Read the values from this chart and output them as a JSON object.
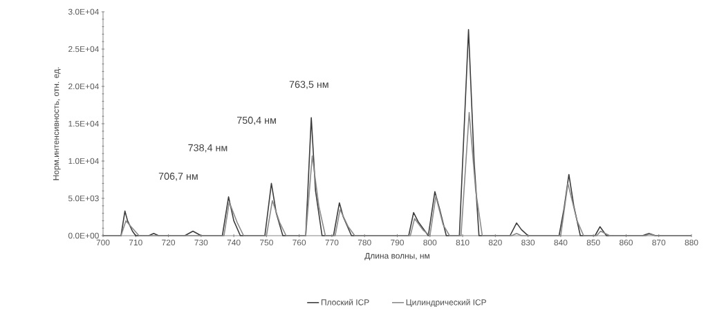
{
  "chart_data": {
    "type": "line",
    "xlabel": "Длина волны, нм",
    "ylabel": "Норм.интенсивность, отн. ед.",
    "xlim": [
      700,
      880
    ],
    "xticks": [
      700,
      710,
      720,
      730,
      740,
      750,
      760,
      770,
      780,
      790,
      800,
      810,
      820,
      830,
      840,
      850,
      860,
      870,
      880
    ],
    "ylim": [
      0,
      30000
    ],
    "yticks": [
      {
        "value": 0,
        "label": "0.0E+00"
      },
      {
        "value": 5000,
        "label": "5.0E+03"
      },
      {
        "value": 10000,
        "label": "1.0E+04"
      },
      {
        "value": 15000,
        "label": "1.5E+04"
      },
      {
        "value": 20000,
        "label": "2.0E+04"
      },
      {
        "value": 25000,
        "label": "2.5E+04"
      },
      {
        "value": 30000,
        "label": "3.0E+04"
      }
    ],
    "grid": false,
    "legend": "bottom",
    "marker": "none",
    "line_style": "solid",
    "annotations": [
      "706,7 нм",
      "738,4 нм",
      "750,4 нм",
      "763,5 нм"
    ],
    "series": [
      {
        "name": "Плоский ICP",
        "color": "#3c3c3c",
        "x": [
          700,
          705.5,
          706.7,
          707.5,
          709,
          710,
          714,
          715.5,
          717,
          725,
          727.5,
          730,
          736.5,
          738.4,
          740,
          742,
          749.5,
          751.5,
          753,
          755,
          762,
          763.7,
          765,
          767,
          770.5,
          772.3,
          773.5,
          776,
          793.5,
          795,
          796.5,
          799,
          799.5,
          801.5,
          803,
          805,
          809,
          811.8,
          813.5,
          815,
          824.5,
          826.5,
          828,
          830,
          839.5,
          841,
          842.5,
          844,
          846,
          850.5,
          852,
          854,
          865,
          867,
          869,
          880
        ],
        "values": [
          0,
          0,
          3300,
          2000,
          600,
          0,
          0,
          300,
          0,
          0,
          600,
          0,
          0,
          5200,
          2000,
          0,
          0,
          7000,
          3000,
          0,
          0,
          15800,
          6000,
          0,
          0,
          4400,
          2500,
          0,
          0,
          3100,
          1800,
          300,
          0,
          5900,
          3500,
          0,
          0,
          27600,
          10000,
          0,
          0,
          1700,
          800,
          0,
          0,
          3600,
          8200,
          4000,
          0,
          0,
          1200,
          0,
          0,
          300,
          0,
          0
        ]
      },
      {
        "name": "Цилиндрический ICP",
        "color": "#8a8a8a",
        "x": [
          700,
          705.5,
          707,
          709,
          711,
          737,
          738.6,
          741,
          743,
          750,
          751.8,
          754,
          756,
          762,
          764,
          766,
          768,
          771,
          772.5,
          775,
          777,
          794,
          795.3,
          798,
          800,
          801.8,
          804,
          806,
          809.5,
          812,
          814,
          816,
          825,
          826.5,
          828,
          840,
          842.2,
          845,
          847,
          851,
          852.2,
          855,
          866,
          867,
          869,
          880
        ],
        "values": [
          0,
          0,
          2000,
          1000,
          0,
          0,
          4500,
          1800,
          0,
          0,
          4700,
          1800,
          0,
          0,
          10700,
          4000,
          0,
          0,
          3500,
          1200,
          0,
          0,
          2300,
          700,
          0,
          5300,
          1500,
          0,
          0,
          16500,
          6000,
          0,
          0,
          300,
          0,
          0,
          7000,
          2000,
          0,
          0,
          600,
          0,
          0,
          200,
          0,
          0
        ]
      }
    ]
  }
}
